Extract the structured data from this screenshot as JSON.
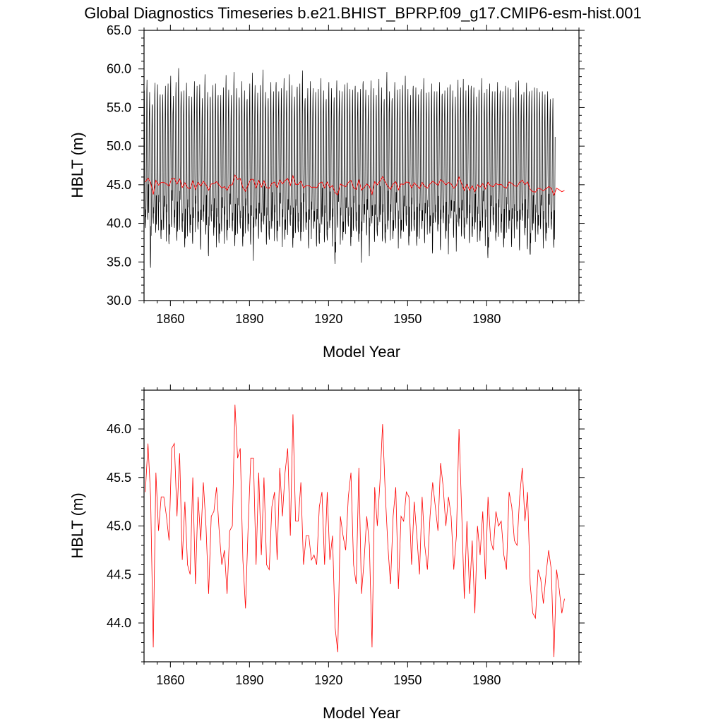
{
  "title": "Global Diagnostics Timeseries b.e21.BHIST_BPRP.f09_g17.CMIP6-esm-hist.001",
  "colors": {
    "monthly": "#000000",
    "annual": "#ff0000",
    "frame": "#000000"
  },
  "chart_data": [
    {
      "type": "line",
      "xlabel": "Model Year",
      "ylabel": "HBLT (m)",
      "xlim": [
        1850,
        2015
      ],
      "ylim": [
        30.0,
        65.0
      ],
      "xticks": [
        "1860",
        "1890",
        "1920",
        "1950",
        "1980"
      ],
      "xtick_values": [
        1860,
        1890,
        1920,
        1950,
        1980
      ],
      "yticks": [
        "30.0",
        "35.0",
        "40.0",
        "45.0",
        "50.0",
        "55.0",
        "60.0",
        "65.0"
      ],
      "ytick_values": [
        30,
        35,
        40,
        45,
        50,
        55,
        60,
        65
      ],
      "grid": false,
      "legend": "none",
      "series": [
        {
          "kind": "monthly",
          "x_start": 1850,
          "description_of_cycle": "annual cycle: winter maxima ~55-60 m, summer minima ~35-40 m",
          "annual_max": [
            57.5,
            58.2,
            57.0,
            55.8,
            57.9,
            58.1,
            57.2,
            56.5,
            58.0,
            57.6,
            59.0,
            56.8,
            57.9,
            60.1,
            57.5,
            56.9,
            58.3,
            57.0,
            56.2,
            58.6,
            57.3,
            57.9,
            56.5,
            58.9,
            57.0,
            56.8,
            57.6,
            58.2,
            57.1,
            56.4,
            57.8,
            58.7,
            57.2,
            56.9,
            59.2,
            57.5,
            56.7,
            58.1,
            57.3,
            56.6,
            57.9,
            59.7,
            57.4,
            56.8,
            58.2,
            59.5,
            57.0,
            56.6,
            58.0,
            57.2,
            58.8,
            56.9,
            57.7,
            58.3,
            57.1,
            59.6,
            57.5,
            56.4,
            58.1,
            57.8,
            59.9,
            56.7,
            57.3,
            58.6,
            57.0,
            56.9,
            57.7,
            58.4,
            57.2,
            56.5,
            58.0,
            57.6,
            56.8,
            58.3,
            57.4,
            56.6,
            57.9,
            58.5,
            57.0,
            57.3,
            58.2,
            56.7,
            57.5,
            58.9,
            57.1,
            56.8,
            58.0,
            57.4,
            56.9,
            58.3,
            57.6,
            56.5,
            59.3,
            57.2,
            56.7,
            58.1,
            57.5,
            56.9,
            57.8,
            59.4,
            57.0,
            56.6,
            58.2,
            57.3,
            56.8,
            57.9,
            58.6,
            57.1,
            56.5,
            58.0,
            57.4,
            56.7,
            58.3,
            57.2,
            56.9,
            57.7,
            58.5,
            57.0,
            56.6,
            58.1,
            57.5,
            59.0,
            56.8,
            57.9,
            58.2,
            57.3,
            56.5,
            57.8,
            58.6,
            57.1,
            56.9,
            58.0,
            57.4,
            56.7,
            58.3,
            57.6,
            56.8,
            57.9,
            58.1,
            57.2,
            56.5,
            57.8,
            58.4,
            57.0,
            56.6,
            58.2,
            57.5,
            56.9,
            57.7,
            58.0,
            56.8,
            57.3,
            56.2,
            57.0,
            56.4,
            55.8,
            57.2,
            56.1,
            55.6,
            57.5,
            55.9,
            55.3,
            57.8,
            55.5
          ],
          "annual_min": [
            38.5,
            40.2,
            35.0,
            39.6,
            38.8,
            40.1,
            37.2,
            39.4,
            38.9,
            36.8,
            40.0,
            38.6,
            37.5,
            39.9,
            38.2,
            36.9,
            39.3,
            38.0,
            37.6,
            40.1,
            38.7,
            37.1,
            39.5,
            38.3,
            36.5,
            39.8,
            38.4,
            37.9,
            36.7,
            39.2,
            38.6,
            37.3,
            39.9,
            38.1,
            36.8,
            39.4,
            38.8,
            37.0,
            39.7,
            38.2,
            37.5,
            36.4,
            39.1,
            38.5,
            37.8,
            39.6,
            38.0,
            37.2,
            39.3,
            38.7,
            36.9,
            39.8,
            38.2,
            37.4,
            39.0,
            38.6,
            36.6,
            39.5,
            38.1,
            37.7,
            39.9,
            38.4,
            37.0,
            39.2,
            38.8,
            37.5,
            36.2,
            39.6,
            38.3,
            37.1,
            39.4,
            38.0,
            34.0,
            39.7,
            38.5,
            37.3,
            39.1,
            38.6,
            36.8,
            39.8,
            38.2,
            37.6,
            35.9,
            39.3,
            38.7,
            37.0,
            39.5,
            38.1,
            37.4,
            39.9,
            38.4,
            36.7,
            39.2,
            38.8,
            37.2,
            39.6,
            38.0,
            37.5,
            39.4,
            38.6,
            36.9,
            39.7,
            38.3,
            37.1,
            39.0,
            38.5,
            37.7,
            39.8,
            38.2,
            36.6,
            39.3,
            38.7,
            37.3,
            39.5,
            38.0,
            37.0,
            39.9,
            38.4,
            37.6,
            39.1,
            38.8,
            36.8,
            39.6,
            38.2,
            37.4,
            39.2,
            38.6,
            37.0,
            39.7,
            38.3,
            35.0,
            39.4,
            38.9,
            37.5,
            39.0,
            38.1,
            36.9,
            39.8,
            38.5,
            37.2,
            39.3,
            38.7,
            37.0,
            39.6,
            38.2,
            37.4,
            35.0,
            39.1,
            38.6,
            37.8,
            39.5,
            38.0,
            37.2,
            39.9,
            38.4,
            36.6
          ]
        },
        {
          "kind": "annual",
          "x_start": 1850.5,
          "values": [
            45.35,
            45.85,
            45.3,
            43.75,
            45.55,
            44.95,
            45.3,
            45.3,
            45.1,
            44.85,
            45.8,
            45.85,
            45.1,
            45.75,
            44.65,
            45.25,
            44.6,
            44.5,
            45.5,
            44.4,
            45.3,
            44.85,
            45.45,
            45.0,
            44.3,
            45.1,
            45.15,
            45.4,
            44.95,
            44.6,
            44.75,
            44.3,
            44.95,
            45.0,
            46.25,
            45.7,
            45.8,
            44.65,
            44.15,
            45.0,
            45.7,
            45.7,
            44.6,
            45.55,
            44.7,
            45.5,
            44.6,
            44.55,
            45.2,
            45.35,
            44.65,
            45.6,
            45.1,
            45.55,
            45.8,
            44.9,
            46.15,
            45.05,
            45.05,
            45.45,
            44.6,
            44.9,
            44.9,
            44.65,
            44.7,
            44.6,
            45.2,
            45.35,
            44.6,
            45.35,
            44.65,
            44.9,
            43.95,
            43.7,
            45.1,
            44.9,
            44.75,
            45.3,
            45.55,
            44.6,
            44.4,
            45.6,
            44.3,
            44.65,
            45.1,
            44.8,
            43.75,
            45.4,
            45.0,
            45.45,
            46.05,
            45.35,
            44.8,
            44.4,
            45.1,
            45.4,
            44.35,
            45.1,
            45.05,
            45.35,
            45.3,
            44.6,
            45.25,
            44.9,
            44.5,
            45.3,
            44.8,
            44.55,
            45.1,
            45.45,
            45.2,
            44.95,
            45.65,
            45.4,
            45.0,
            45.3,
            45.1,
            44.55,
            44.9,
            46.0,
            45.15,
            44.25,
            45.05,
            44.3,
            44.85,
            44.1,
            45.0,
            44.7,
            45.15,
            44.45,
            45.3,
            44.85,
            44.75,
            45.15,
            45.0,
            45.05,
            44.7,
            44.55,
            45.35,
            45.2,
            44.85,
            44.8,
            45.3,
            45.6,
            45.05,
            45.35,
            44.4,
            44.1,
            44.05,
            44.55,
            44.45,
            44.2,
            44.5,
            44.75,
            44.55,
            43.65,
            44.55,
            44.35,
            44.1,
            44.25
          ]
        }
      ]
    },
    {
      "type": "line",
      "xlabel": "Model Year",
      "ylabel": "HBLT (m)",
      "xlim": [
        1850,
        2015
      ],
      "ylim": [
        43.6,
        46.4
      ],
      "xticks": [
        "1860",
        "1890",
        "1920",
        "1950",
        "1980"
      ],
      "xtick_values": [
        1860,
        1890,
        1920,
        1950,
        1980
      ],
      "yticks": [
        "44.0",
        "44.5",
        "45.0",
        "45.5",
        "46.0"
      ],
      "ytick_values": [
        44.0,
        44.5,
        45.0,
        45.5,
        46.0
      ],
      "grid": false,
      "legend": "none",
      "series": [
        {
          "kind": "annual",
          "x_start": 1850.5,
          "values_ref": "same as top panel annual series"
        }
      ]
    }
  ]
}
